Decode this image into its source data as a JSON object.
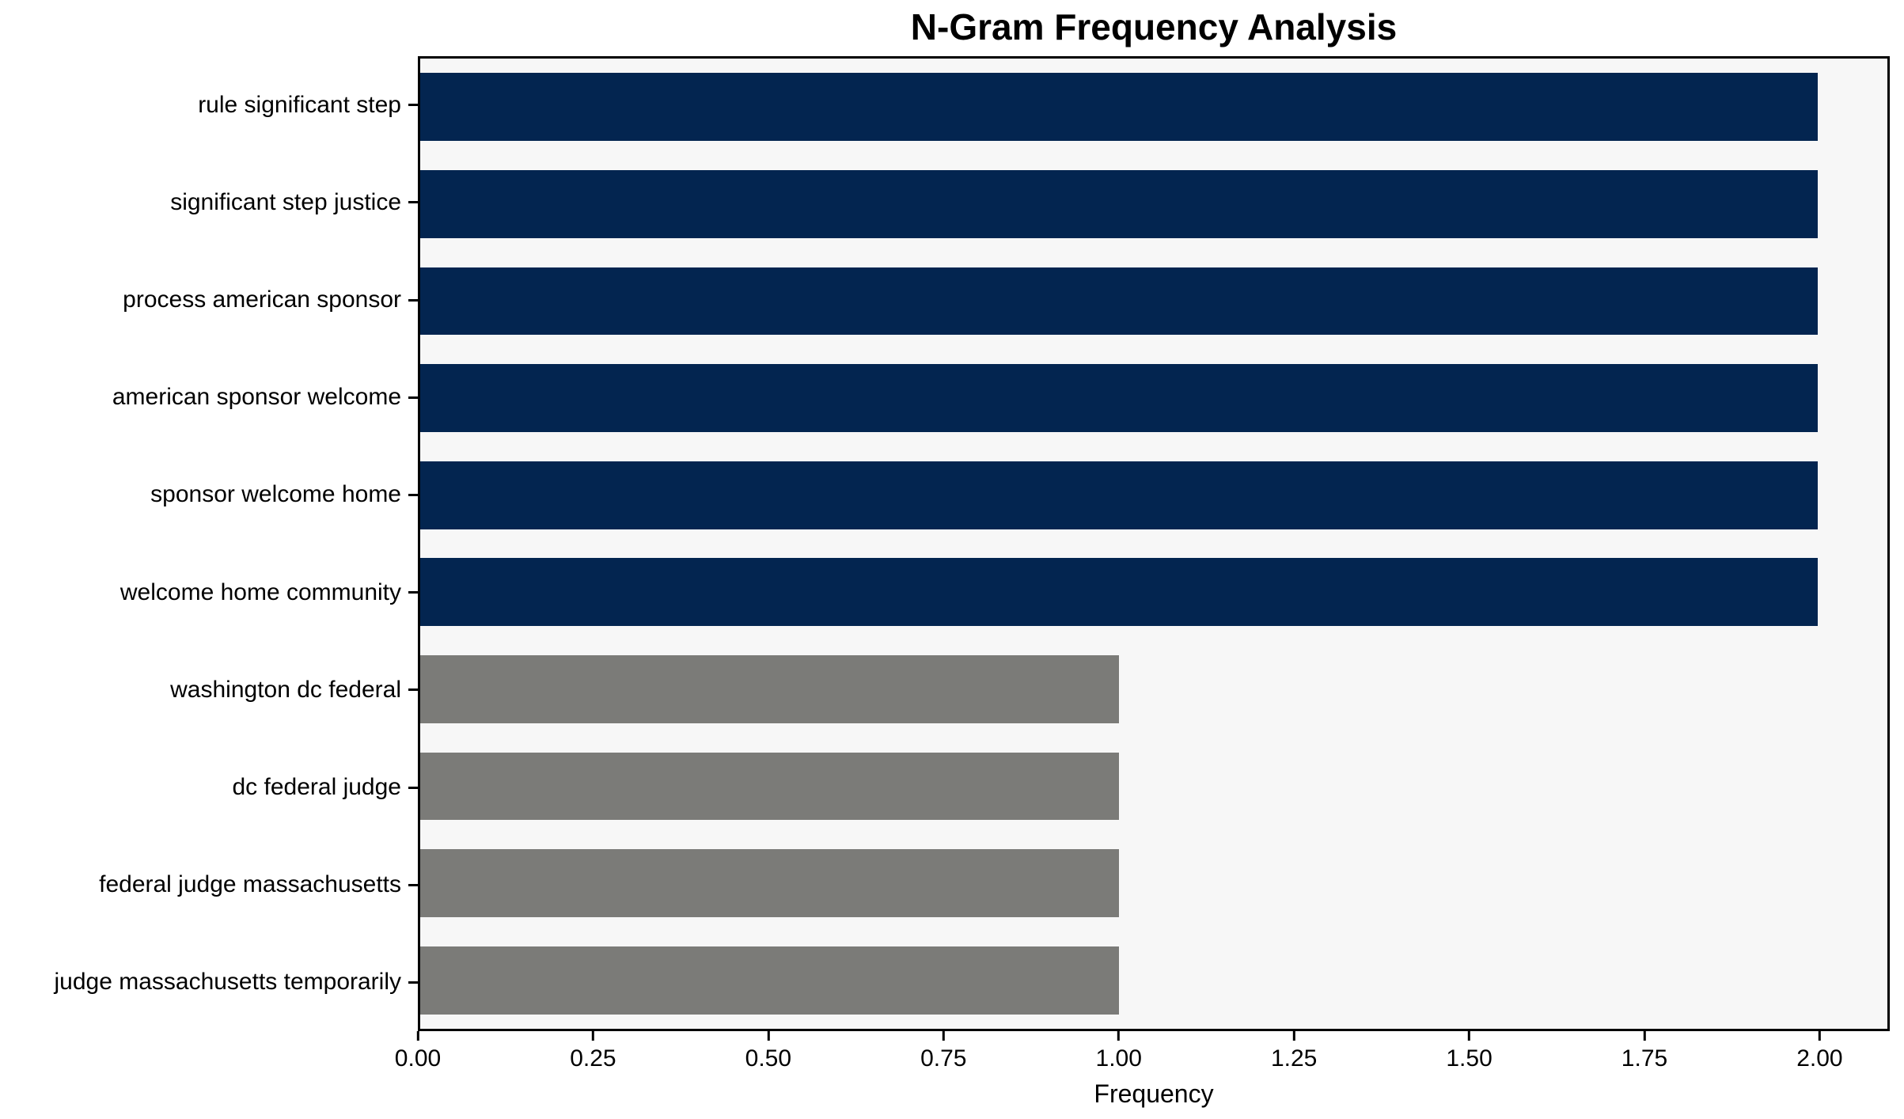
{
  "chart_data": {
    "type": "bar",
    "orientation": "horizontal",
    "title": "N-Gram Frequency Analysis",
    "xlabel": "Frequency",
    "ylabel": "",
    "categories": [
      "rule significant step",
      "significant step justice",
      "process american sponsor",
      "american sponsor welcome",
      "sponsor welcome home",
      "welcome home community",
      "washington dc federal",
      "dc federal judge",
      "federal judge massachusetts",
      "judge massachusetts temporarily"
    ],
    "values": [
      2,
      2,
      2,
      2,
      2,
      2,
      1,
      1,
      1,
      1
    ],
    "bar_colors": [
      "#032550",
      "#032550",
      "#032550",
      "#032550",
      "#032550",
      "#032550",
      "#7b7b78",
      "#7b7b78",
      "#7b7b78",
      "#7b7b78"
    ],
    "xticks": [
      0.0,
      0.25,
      0.5,
      0.75,
      1.0,
      1.25,
      1.5,
      1.75,
      2.0
    ],
    "xtick_labels": [
      "0.00",
      "0.25",
      "0.50",
      "0.75",
      "1.00",
      "1.25",
      "1.50",
      "1.75",
      "2.00"
    ],
    "xlim": [
      0,
      2.1
    ],
    "grid": false,
    "legend": null,
    "colors": {
      "plot_background": "#f7f7f7",
      "figure_background": "#ffffff",
      "spine": "#000000",
      "text": "#000000"
    }
  }
}
